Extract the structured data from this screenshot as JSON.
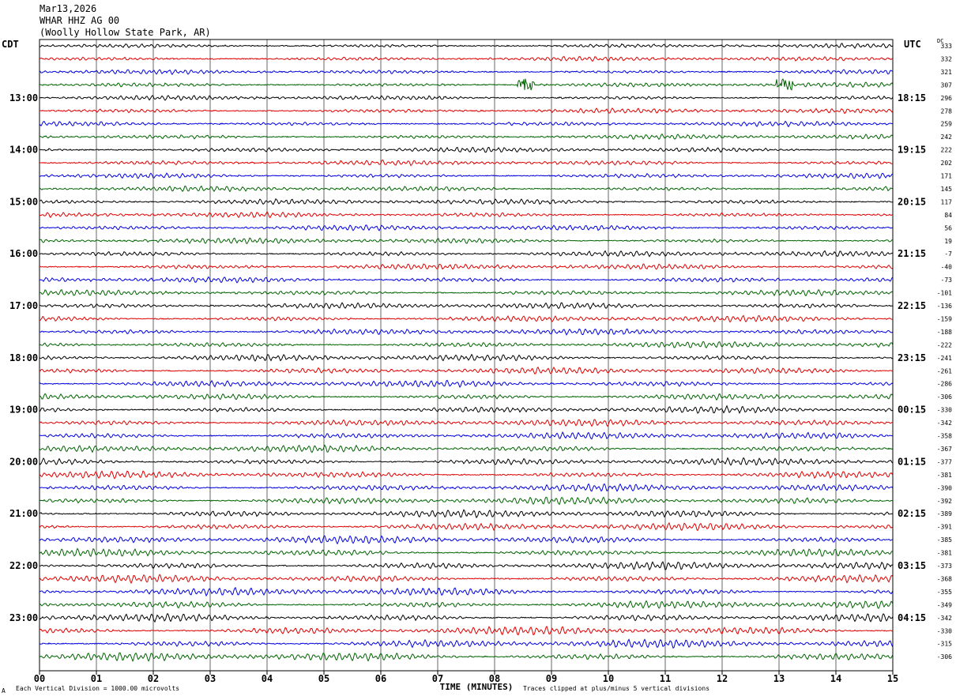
{
  "header": {
    "date": "Mar13,2026",
    "station": "WHAR HHZ AG 00",
    "location": "(Woolly Hollow State Park, AR)"
  },
  "left_zone": "CDT",
  "right_zone": "UTC",
  "dc_label": "DC",
  "footer": {
    "scale_note": "Each Vertical Division = 1000.00 microvolts",
    "clip_note": "Traces clipped at plus/minus 5 vertical divisions",
    "corner_mark": "A"
  },
  "colors": {
    "trace_cycle": [
      "#000000",
      "#e00000",
      "#0000e0",
      "#006400"
    ],
    "grid": "#000000"
  },
  "chart_data": {
    "type": "line",
    "title": "",
    "xlabel": "TIME (MINUTES)",
    "ylabel": "",
    "xlim": [
      0,
      15
    ],
    "x_ticks": [
      "00",
      "01",
      "02",
      "03",
      "04",
      "05",
      "06",
      "07",
      "08",
      "09",
      "10",
      "11",
      "12",
      "13",
      "14",
      "15"
    ],
    "trace_count": 48,
    "left_hour_labels": [
      "13:00",
      "14:00",
      "15:00",
      "16:00",
      "17:00",
      "18:00",
      "19:00",
      "20:00",
      "21:00",
      "22:00",
      "23:00"
    ],
    "right_hour_labels": [
      "18:15",
      "19:15",
      "20:15",
      "21:15",
      "22:15",
      "23:15",
      "00:15",
      "01:15",
      "02:15",
      "03:15",
      "04:15"
    ],
    "dc_offsets": [
      333,
      332,
      321,
      307,
      296,
      278,
      259,
      242,
      222,
      202,
      171,
      145,
      117,
      84,
      56,
      19,
      -7,
      -40,
      -73,
      -101,
      -136,
      -159,
      -188,
      -222,
      -241,
      -261,
      -286,
      -306,
      -330,
      -342,
      -358,
      -367,
      -377,
      -381,
      -390,
      -392,
      -389,
      -391,
      -385,
      -381,
      -373,
      -368,
      -355,
      -349,
      -342,
      -330,
      -315,
      -306
    ],
    "events": [
      {
        "trace": 3,
        "minute": 8.55
      },
      {
        "trace": 3,
        "minute": 13.1
      }
    ],
    "grid": true
  }
}
